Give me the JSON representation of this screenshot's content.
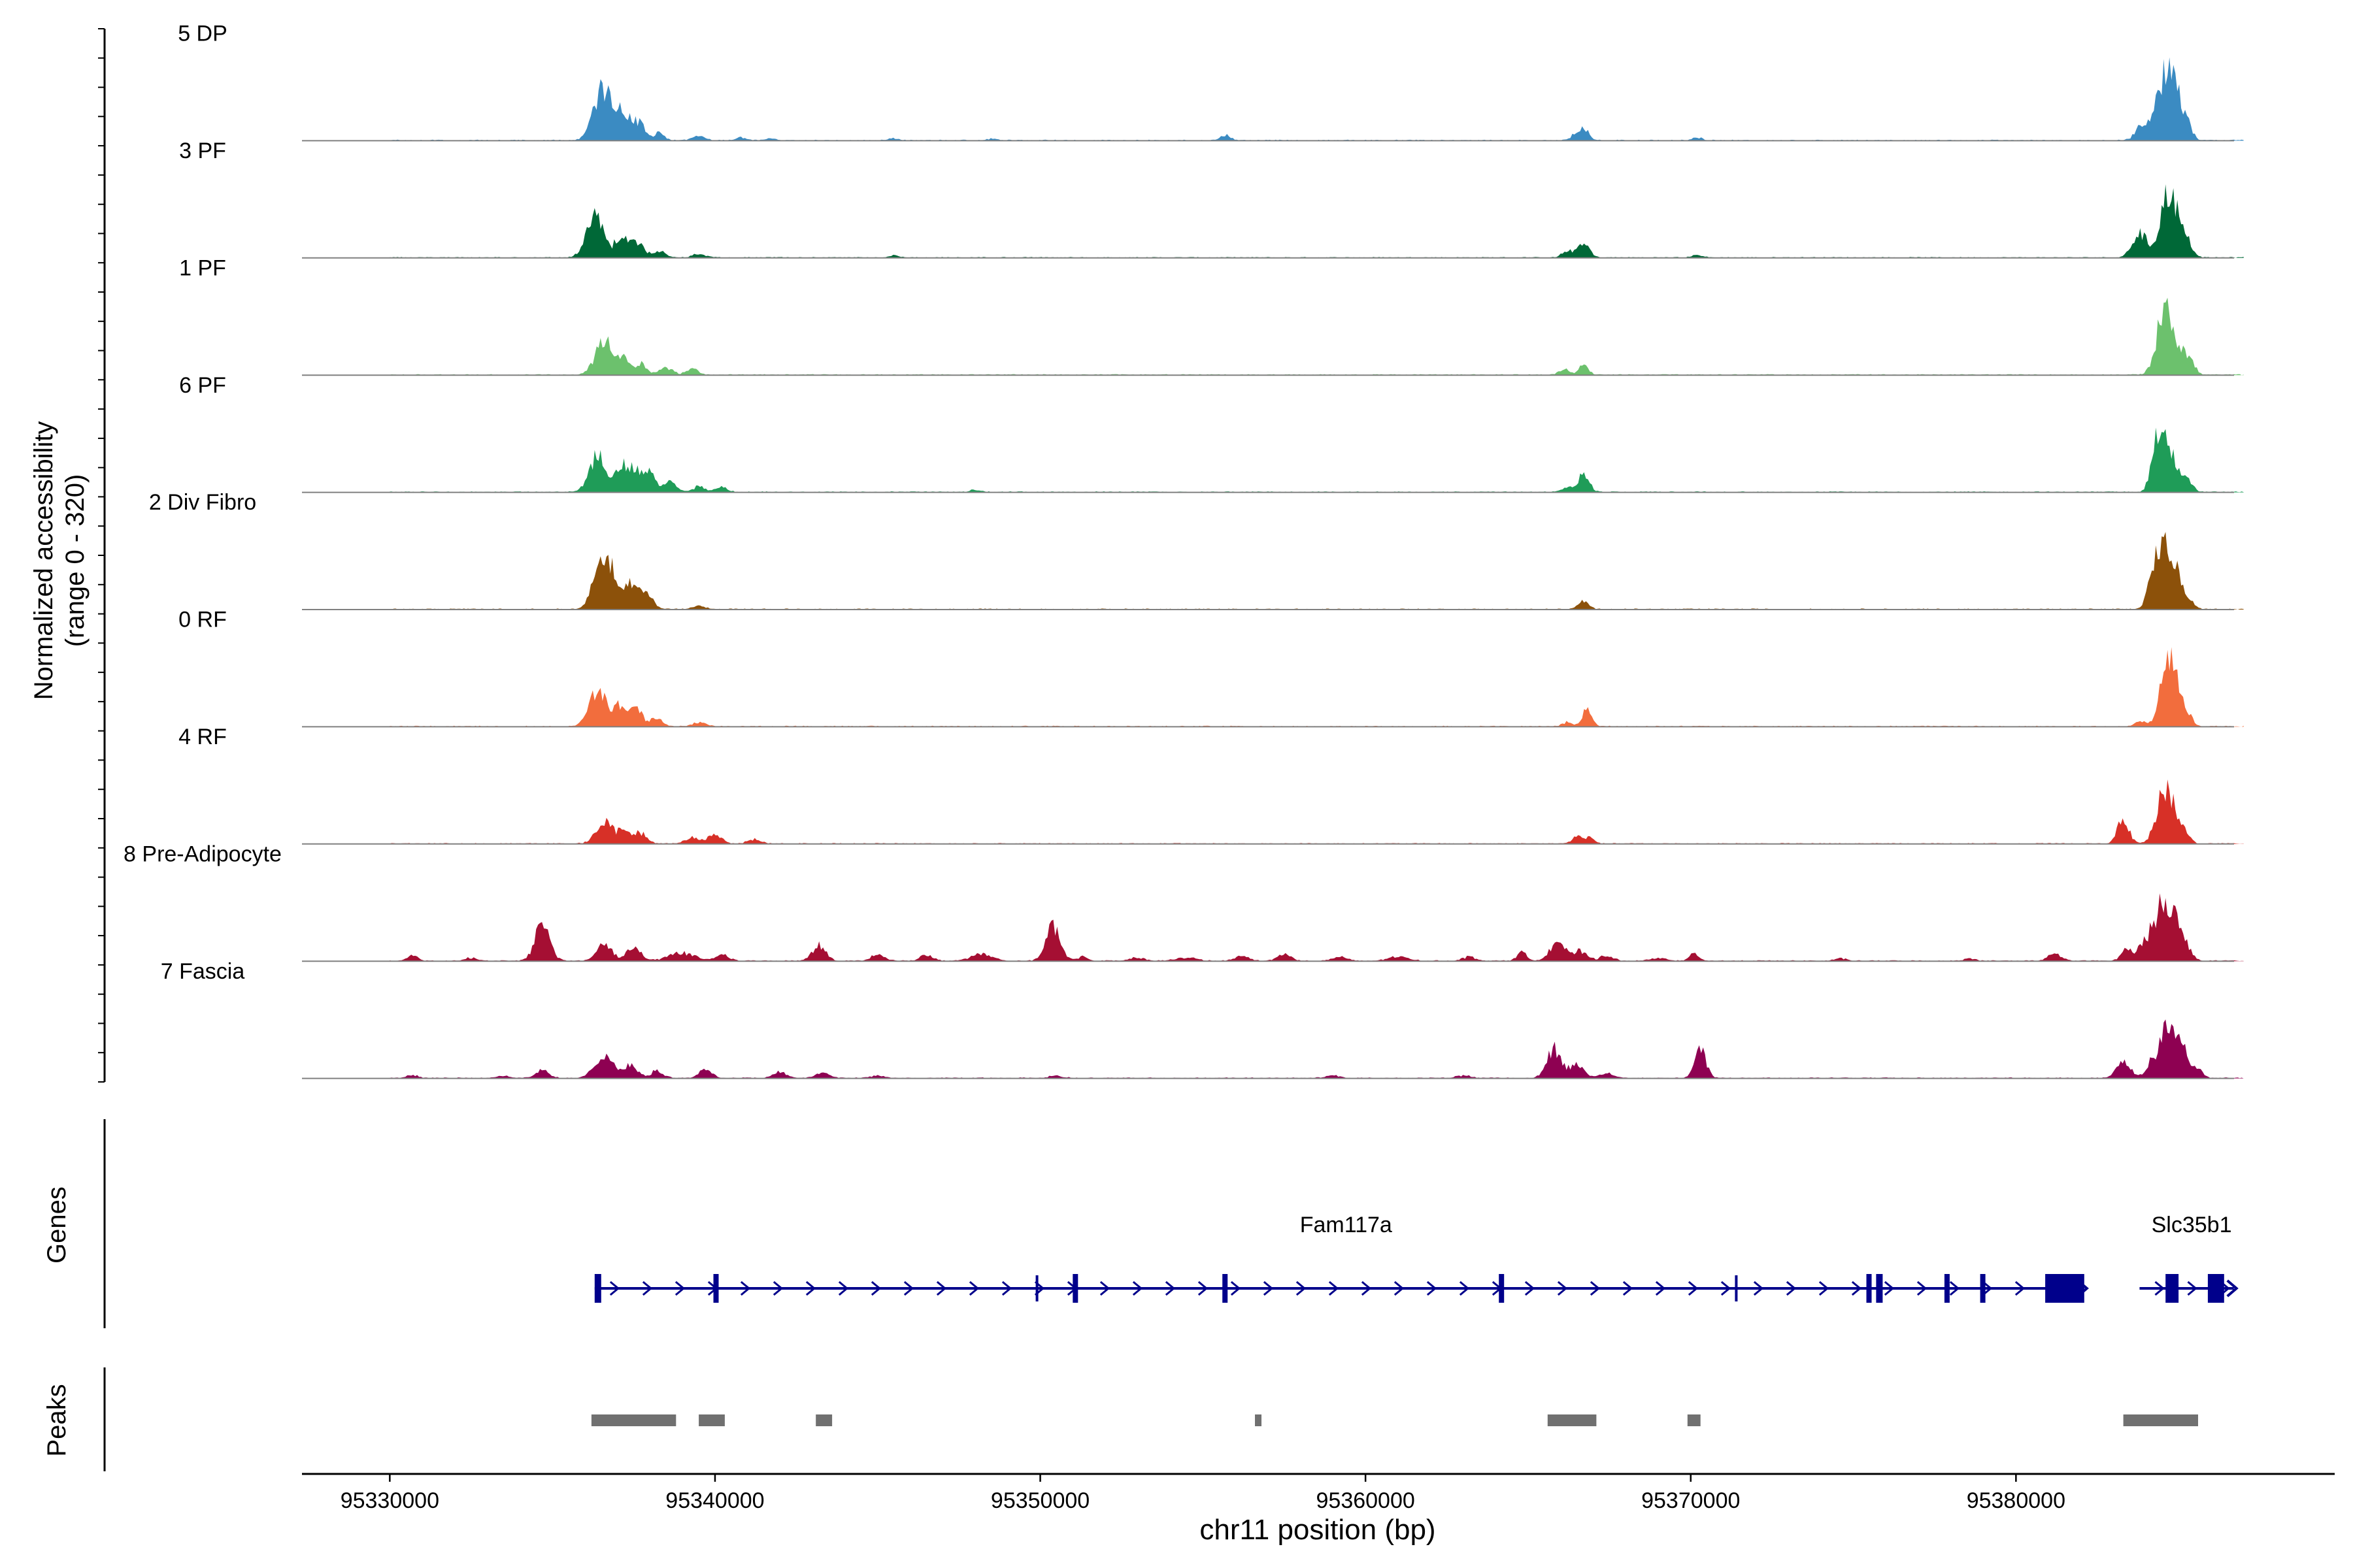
{
  "chart_data": {
    "type": "area",
    "title": "",
    "ylabel_line1": "Normalized accessibility",
    "ylabel_line2": "(range 0 - 320)",
    "xlabel": "chr11 position (bp)",
    "ylim": [
      0,
      320
    ],
    "xlim": [
      95327300,
      95389800
    ],
    "x_ticks": [
      95330000,
      95340000,
      95350000,
      95360000,
      95370000,
      95380000
    ],
    "x_tick_labels": [
      "95330000",
      "95340000",
      "95350000",
      "95360000",
      "95370000",
      "95380000"
    ],
    "genes_label": "Genes",
    "peaks_label": "Peaks",
    "series": [
      {
        "name": "5 DP",
        "color": "#3B8BC2",
        "peaks": [
          [
            95336500,
            180,
            260
          ],
          [
            95336900,
            70,
            140
          ],
          [
            95337100,
            40,
            160
          ],
          [
            95337350,
            60,
            230
          ],
          [
            95337700,
            45,
            180
          ],
          [
            95338300,
            30,
            140
          ],
          [
            95339500,
            14,
            200
          ],
          [
            95340800,
            10,
            150
          ],
          [
            95341700,
            8,
            150
          ],
          [
            95345500,
            8,
            150
          ],
          [
            95348500,
            6,
            150
          ],
          [
            95355700,
            20,
            150
          ],
          [
            95366700,
            45,
            150
          ],
          [
            95366400,
            15,
            120
          ],
          [
            95370200,
            10,
            150
          ],
          [
            95383800,
            40,
            170
          ],
          [
            95384400,
            140,
            260
          ],
          [
            95384700,
            190,
            180
          ],
          [
            95385000,
            120,
            180
          ],
          [
            95385300,
            40,
            150
          ]
        ]
      },
      {
        "name": "3 PF",
        "color": "#006837",
        "peaks": [
          [
            95336300,
            150,
            260
          ],
          [
            95337000,
            45,
            150
          ],
          [
            95337200,
            40,
            170
          ],
          [
            95337600,
            60,
            220
          ],
          [
            95338300,
            25,
            160
          ],
          [
            95339500,
            12,
            200
          ],
          [
            95345500,
            8,
            150
          ],
          [
            95366700,
            60,
            170
          ],
          [
            95366200,
            25,
            150
          ],
          [
            95370200,
            10,
            150
          ],
          [
            95383800,
            90,
            220
          ],
          [
            95384600,
            180,
            220
          ],
          [
            95384900,
            130,
            200
          ],
          [
            95385300,
            50,
            150
          ]
        ]
      },
      {
        "name": "1 PF",
        "color": "#6CC16D",
        "peaks": [
          [
            95336600,
            130,
            270
          ],
          [
            95337200,
            50,
            170
          ],
          [
            95337700,
            40,
            170
          ],
          [
            95338500,
            28,
            200
          ],
          [
            95339300,
            20,
            180
          ],
          [
            95366100,
            20,
            150
          ],
          [
            95366700,
            35,
            150
          ],
          [
            95384500,
            180,
            220
          ],
          [
            95384700,
            140,
            160
          ],
          [
            95385100,
            90,
            180
          ],
          [
            95385400,
            30,
            150
          ]
        ]
      },
      {
        "name": "6 PF",
        "color": "#1F9C58",
        "peaks": [
          [
            95336400,
            140,
            260
          ],
          [
            95337100,
            60,
            170
          ],
          [
            95337500,
            90,
            250
          ],
          [
            95338000,
            60,
            170
          ],
          [
            95338600,
            35,
            200
          ],
          [
            95339500,
            20,
            180
          ],
          [
            95340200,
            18,
            180
          ],
          [
            95348000,
            8,
            150
          ],
          [
            95366700,
            65,
            170
          ],
          [
            95366200,
            18,
            150
          ],
          [
            95384500,
            165,
            230
          ],
          [
            95384300,
            90,
            150
          ],
          [
            95384900,
            85,
            180
          ],
          [
            95385300,
            35,
            150
          ]
        ]
      },
      {
        "name": "2 Div Fibro",
        "color": "#8C510A",
        "peaks": [
          [
            95336500,
            190,
            240
          ],
          [
            95336800,
            80,
            150
          ],
          [
            95337200,
            60,
            170
          ],
          [
            95337600,
            90,
            230
          ],
          [
            95338000,
            30,
            150
          ],
          [
            95339500,
            12,
            200
          ],
          [
            95366700,
            30,
            150
          ],
          [
            95384500,
            210,
            240
          ],
          [
            95384200,
            70,
            150
          ],
          [
            95384900,
            110,
            200
          ],
          [
            95385300,
            35,
            150
          ]
        ]
      },
      {
        "name": "0 RF",
        "color": "#F26D3D",
        "peaks": [
          [
            95336400,
            140,
            260
          ],
          [
            95337000,
            60,
            170
          ],
          [
            95337500,
            80,
            230
          ],
          [
            95338200,
            30,
            170
          ],
          [
            95339500,
            15,
            200
          ],
          [
            95366800,
            60,
            150
          ],
          [
            95366200,
            15,
            150
          ],
          [
            95384600,
            190,
            210
          ],
          [
            95384900,
            140,
            180
          ],
          [
            95385300,
            40,
            150
          ],
          [
            95383800,
            20,
            150
          ]
        ]
      },
      {
        "name": "4 RF",
        "color": "#D73027",
        "peaks": [
          [
            95336600,
            75,
            260
          ],
          [
            95337200,
            45,
            180
          ],
          [
            95337700,
            40,
            200
          ],
          [
            95339300,
            25,
            200
          ],
          [
            95340000,
            35,
            200
          ],
          [
            95341200,
            15,
            200
          ],
          [
            95366500,
            25,
            150
          ],
          [
            95366900,
            25,
            120
          ],
          [
            95383300,
            90,
            170
          ],
          [
            95384500,
            150,
            220
          ],
          [
            95384800,
            110,
            200
          ],
          [
            95385200,
            40,
            150
          ]
        ]
      },
      {
        "name": "8 Pre-Adipocyte",
        "color": "#A50F33",
        "peaks": [
          [
            95330700,
            20,
            150
          ],
          [
            95332500,
            12,
            150
          ],
          [
            95334700,
            140,
            220
          ],
          [
            95336600,
            65,
            230
          ],
          [
            95337500,
            45,
            230
          ],
          [
            95339000,
            30,
            400
          ],
          [
            95340200,
            25,
            200
          ],
          [
            95343200,
            60,
            200
          ],
          [
            95345000,
            25,
            200
          ],
          [
            95346500,
            20,
            200
          ],
          [
            95348200,
            25,
            300
          ],
          [
            95350400,
            130,
            220
          ],
          [
            95351300,
            15,
            150
          ],
          [
            95353000,
            12,
            200
          ],
          [
            95354500,
            12,
            300
          ],
          [
            95356200,
            20,
            200
          ],
          [
            95357500,
            25,
            200
          ],
          [
            95359200,
            15,
            200
          ],
          [
            95361000,
            15,
            300
          ],
          [
            95363200,
            15,
            200
          ],
          [
            95364800,
            30,
            150
          ],
          [
            95365900,
            75,
            220
          ],
          [
            95366600,
            35,
            200
          ],
          [
            95367400,
            20,
            200
          ],
          [
            95369000,
            12,
            200
          ],
          [
            95370100,
            25,
            150
          ],
          [
            95374600,
            10,
            150
          ],
          [
            95378600,
            10,
            150
          ],
          [
            95381200,
            25,
            200
          ],
          [
            95383400,
            40,
            170
          ],
          [
            95384000,
            80,
            200
          ],
          [
            95384500,
            220,
            210
          ],
          [
            95384900,
            130,
            200
          ],
          [
            95385300,
            40,
            150
          ]
        ]
      },
      {
        "name": "7 Fascia",
        "color": "#8E0152",
        "peaks": [
          [
            95330700,
            12,
            150
          ],
          [
            95333500,
            8,
            150
          ],
          [
            95334700,
            30,
            200
          ],
          [
            95336300,
            35,
            200
          ],
          [
            95336700,
            65,
            220
          ],
          [
            95337400,
            50,
            200
          ],
          [
            95338200,
            25,
            200
          ],
          [
            95339700,
            30,
            200
          ],
          [
            95342000,
            22,
            200
          ],
          [
            95343300,
            18,
            200
          ],
          [
            95345000,
            8,
            200
          ],
          [
            95350500,
            10,
            200
          ],
          [
            95359000,
            10,
            200
          ],
          [
            95363000,
            10,
            200
          ],
          [
            95365800,
            110,
            220
          ],
          [
            95366500,
            45,
            220
          ],
          [
            95367400,
            18,
            200
          ],
          [
            95370300,
            100,
            170
          ],
          [
            95383300,
            70,
            200
          ],
          [
            95384200,
            60,
            200
          ],
          [
            95384700,
            190,
            220
          ],
          [
            95385100,
            100,
            200
          ],
          [
            95385600,
            30,
            150
          ]
        ]
      }
    ],
    "genes": [
      {
        "name": "Fam117a",
        "start": 95336300,
        "end": 95382100,
        "exons": [
          [
            95336300,
            95336500
          ],
          [
            95339950,
            95340100
          ],
          [
            95351000,
            95351150
          ],
          [
            95355600,
            95355750
          ],
          [
            95364100,
            95364200
          ],
          [
            95375400,
            95375500
          ],
          [
            95375700,
            95375900
          ],
          [
            95377800,
            95377900
          ],
          [
            95378900,
            95379000
          ],
          [
            95380900,
            95382100
          ]
        ],
        "ticks": [
          95349900,
          95371400
        ],
        "label_x": 95359400
      },
      {
        "name": "Slc35b1",
        "start": 95383800,
        "end": 95386700,
        "exons": [
          [
            95384600,
            95385000
          ],
          [
            95385900,
            95386400
          ]
        ],
        "label_x": 95385400
      }
    ],
    "peak_regions": [
      [
        95336200,
        95338800
      ],
      [
        95339500,
        95340300
      ],
      [
        95343100,
        95343600
      ],
      [
        95356600,
        95356800
      ],
      [
        95365600,
        95367100
      ],
      [
        95369900,
        95370300
      ],
      [
        95383300,
        95385600
      ]
    ]
  }
}
